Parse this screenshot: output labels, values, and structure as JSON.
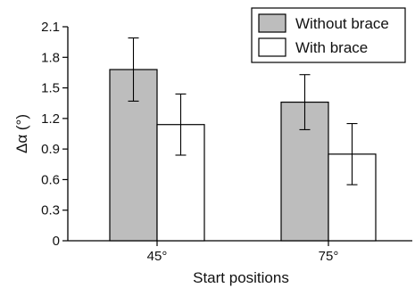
{
  "chart_data": {
    "type": "bar",
    "categories": [
      "45°",
      "75°"
    ],
    "series": [
      {
        "name": "Without brace",
        "values": [
          1.68,
          1.36
        ],
        "error": [
          0.31,
          0.27
        ],
        "color": "#bdbdbd"
      },
      {
        "name": "With brace",
        "values": [
          1.14,
          0.85
        ],
        "error": [
          0.3,
          0.3
        ],
        "color": "#ffffff"
      }
    ],
    "xlabel": "Start positions",
    "ylabel": "Δα (°)",
    "ylim": [
      0,
      2.1
    ],
    "yticks": [
      "0",
      "0.3",
      "0.6",
      "0.9",
      "1.2",
      "1.5",
      "1.8",
      "2.1"
    ],
    "legend_position": "top-right",
    "grid": false,
    "error_bars": true
  }
}
